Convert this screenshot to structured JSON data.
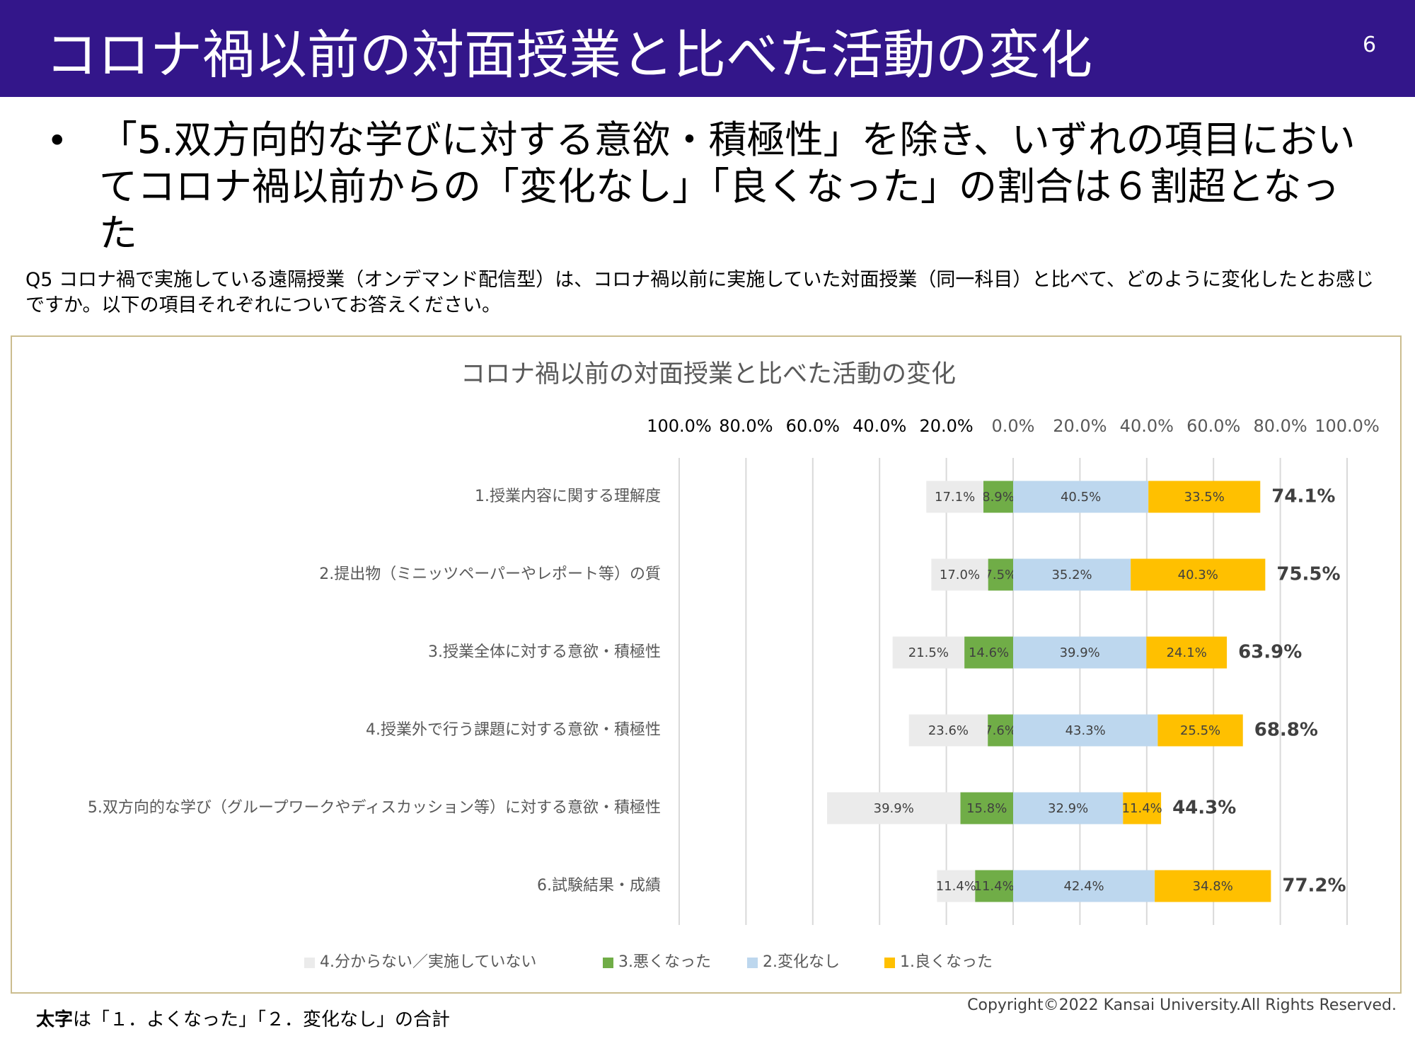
{
  "header": {
    "title": "コロナ禍以前の対面授業と比べた活動の変化",
    "page_number": "6"
  },
  "bullet": {
    "marker": "•",
    "text": "「5.双方向的な学びに対する意欲・積極性」を除き、いずれの項目においてコロナ禍以前からの「変化なし」「良くなった」の割合は６割超となった"
  },
  "question": "Q5 コロナ禍で実施している遠隔授業（オンデマンド配信型）は、コロナ禍以前に実施していた対面授業（同一科目）と比べて、どのように変化したとお感じですか。以下の項目それぞれについてお答えください。",
  "chart_data": {
    "type": "diverging-bar",
    "title": "コロナ禍以前の対面授業と比べた活動の変化",
    "categories": [
      "1.授業内容に関する理解度",
      "2.提出物（ミニッツペーパーやレポート等）の質",
      "3.授業全体に対する意欲・積極性",
      "4.授業外で行う課題に対する意欲・積極性",
      "5.双方向的な学び（グループワークやディスカッション等）に対する意欲・積極性",
      "6.試験結果・成績"
    ],
    "xlim": [
      -100,
      100
    ],
    "xticks": [
      {
        "value": -100,
        "label": "100.0%"
      },
      {
        "value": -80,
        "label": "80.0%"
      },
      {
        "value": -60,
        "label": "60.0%"
      },
      {
        "value": -40,
        "label": "40.0%"
      },
      {
        "value": -20,
        "label": "20.0%"
      },
      {
        "value": 0,
        "label": "0.0%"
      },
      {
        "value": 20,
        "label": "20.0%"
      },
      {
        "value": 40,
        "label": "40.0%"
      },
      {
        "value": 60,
        "label": "60.0%"
      },
      {
        "value": 80,
        "label": "80.0%"
      },
      {
        "value": 100,
        "label": "100.0%"
      }
    ],
    "grid": true,
    "series": [
      {
        "name": "4.分からない／実施していない",
        "color": "#ebebeb",
        "side": "left",
        "values": [
          17.1,
          17.0,
          21.5,
          23.6,
          39.9,
          11.4
        ],
        "value_labels": [
          "17.1%",
          "17.0%",
          "21.5%",
          "23.6%",
          "39.9%",
          "11.4%"
        ]
      },
      {
        "name": "3.悪くなった",
        "color": "#70ad47",
        "side": "left",
        "values": [
          8.9,
          7.5,
          14.6,
          7.6,
          15.8,
          11.4
        ],
        "value_labels": [
          "8.9%",
          "7.5%",
          "14.6%",
          "7.6%",
          "15.8%",
          "11.4%"
        ]
      },
      {
        "name": "2.変化なし",
        "color": "#bdd7ee",
        "side": "right",
        "values": [
          40.5,
          35.2,
          39.9,
          43.3,
          32.9,
          42.4
        ],
        "value_labels": [
          "40.5%",
          "35.2%",
          "39.9%",
          "43.3%",
          "32.9%",
          "42.4%"
        ]
      },
      {
        "name": "1.良くなった",
        "color": "#ffc000",
        "side": "right",
        "values": [
          33.5,
          40.3,
          24.1,
          25.5,
          11.4,
          34.8
        ],
        "value_labels": [
          "33.5%",
          "40.3%",
          "24.1%",
          "25.5%",
          "11.4%",
          "34.8%"
        ]
      }
    ],
    "totals": {
      "values": [
        74.1,
        75.5,
        63.9,
        68.8,
        44.3,
        77.2
      ],
      "value_labels": [
        "74.1%",
        "75.5%",
        "63.9%",
        "68.8%",
        "44.3%",
        "77.2%"
      ]
    }
  },
  "footnote": {
    "bold": "太字",
    "text": "は「１．よくなった」「２．変化なし」の合計"
  },
  "copyright": "Copyright©2022 Kansai University.All Rights Reserved."
}
